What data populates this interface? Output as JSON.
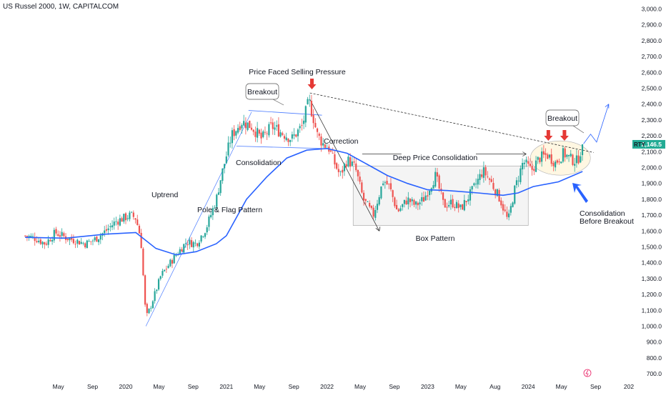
{
  "header": {
    "title": "US Russel 2000, 1W, CAPITALCOM"
  },
  "price_scale": {
    "ticker": "RTY",
    "last_price": "2,146.5"
  },
  "chart_data": {
    "type": "candlestick",
    "title": "US Russel 2000, 1W, CAPITALCOM",
    "ylim": [
      660,
      3020
    ],
    "yticks": [
      {
        "value": 3000,
        "label": "3,000.0"
      },
      {
        "value": 2900,
        "label": "2,900.0"
      },
      {
        "value": 2800,
        "label": "2,800.0"
      },
      {
        "value": 2700,
        "label": "2,700.0"
      },
      {
        "value": 2600,
        "label": "2,600.0"
      },
      {
        "value": 2500,
        "label": "2,500.0"
      },
      {
        "value": 2400,
        "label": "2,400.0"
      },
      {
        "value": 2300,
        "label": "2,300.0"
      },
      {
        "value": 2200,
        "label": "2,200.0"
      },
      {
        "value": 2100,
        "label": "2,100.0"
      },
      {
        "value": 2000,
        "label": "2,000.0"
      },
      {
        "value": 1900,
        "label": "1,900.0"
      },
      {
        "value": 1800,
        "label": "1,800.0"
      },
      {
        "value": 1700,
        "label": "1,700.0"
      },
      {
        "value": 1600,
        "label": "1,600.0"
      },
      {
        "value": 1500,
        "label": "1,500.0"
      },
      {
        "value": 1400,
        "label": "1,400.0"
      },
      {
        "value": 1300,
        "label": "1,300.0"
      },
      {
        "value": 1200,
        "label": "1,200.0"
      },
      {
        "value": 1100,
        "label": "1,100.0"
      },
      {
        "value": 1000,
        "label": "1,000.0"
      },
      {
        "value": 900,
        "label": "900.0"
      },
      {
        "value": 800,
        "label": "800.0"
      },
      {
        "value": 700,
        "label": "700.0"
      }
    ],
    "xticks": [
      {
        "t": 2019.33,
        "label": "May"
      },
      {
        "t": 2019.67,
        "label": "Sep"
      },
      {
        "t": 2020.0,
        "label": "2020"
      },
      {
        "t": 2020.33,
        "label": "May"
      },
      {
        "t": 2020.67,
        "label": "Sep"
      },
      {
        "t": 2021.0,
        "label": "2021"
      },
      {
        "t": 2021.33,
        "label": "May"
      },
      {
        "t": 2021.67,
        "label": "Sep"
      },
      {
        "t": 2022.0,
        "label": "2022"
      },
      {
        "t": 2022.33,
        "label": "May"
      },
      {
        "t": 2022.67,
        "label": "Sep"
      },
      {
        "t": 2023.0,
        "label": "2023"
      },
      {
        "t": 2023.33,
        "label": "May"
      },
      {
        "t": 2023.67,
        "label": "Aug"
      },
      {
        "t": 2024.0,
        "label": "2024"
      },
      {
        "t": 2024.33,
        "label": "May"
      },
      {
        "t": 2024.67,
        "label": "Sep"
      },
      {
        "t": 2025.0,
        "label": "202"
      }
    ],
    "path": [
      [
        2019.0,
        1570
      ],
      [
        2019.1,
        1555
      ],
      [
        2019.2,
        1520
      ],
      [
        2019.3,
        1590
      ],
      [
        2019.4,
        1560
      ],
      [
        2019.5,
        1540
      ],
      [
        2019.6,
        1520
      ],
      [
        2019.7,
        1550
      ],
      [
        2019.8,
        1600
      ],
      [
        2019.9,
        1660
      ],
      [
        2020.05,
        1700
      ],
      [
        2020.1,
        1680
      ],
      [
        2020.15,
        1550
      ],
      [
        2020.2,
        1050
      ],
      [
        2020.25,
        1130
      ],
      [
        2020.35,
        1320
      ],
      [
        2020.5,
        1450
      ],
      [
        2020.6,
        1530
      ],
      [
        2020.7,
        1520
      ],
      [
        2020.8,
        1620
      ],
      [
        2020.9,
        1800
      ],
      [
        2020.95,
        1950
      ],
      [
        2021.05,
        2200
      ],
      [
        2021.15,
        2290
      ],
      [
        2021.25,
        2260
      ],
      [
        2021.35,
        2180
      ],
      [
        2021.45,
        2260
      ],
      [
        2021.55,
        2220
      ],
      [
        2021.65,
        2180
      ],
      [
        2021.75,
        2260
      ],
      [
        2021.82,
        2420
      ],
      [
        2021.87,
        2300
      ],
      [
        2021.9,
        2210
      ],
      [
        2021.96,
        2150
      ],
      [
        2022.02,
        2120
      ],
      [
        2022.08,
        2020
      ],
      [
        2022.13,
        1950
      ],
      [
        2022.2,
        2050
      ],
      [
        2022.28,
        2000
      ],
      [
        2022.36,
        1800
      ],
      [
        2022.46,
        1700
      ],
      [
        2022.56,
        1920
      ],
      [
        2022.62,
        1880
      ],
      [
        2022.7,
        1720
      ],
      [
        2022.8,
        1800
      ],
      [
        2022.88,
        1760
      ],
      [
        2022.96,
        1800
      ],
      [
        2023.08,
        1950
      ],
      [
        2023.16,
        1760
      ],
      [
        2023.24,
        1780
      ],
      [
        2023.33,
        1740
      ],
      [
        2023.45,
        1860
      ],
      [
        2023.55,
        1980
      ],
      [
        2023.62,
        1920
      ],
      [
        2023.72,
        1800
      ],
      [
        2023.8,
        1660
      ],
      [
        2023.86,
        1850
      ],
      [
        2023.95,
        2040
      ],
      [
        2024.03,
        1980
      ],
      [
        2024.11,
        2060
      ],
      [
        2024.19,
        2080
      ],
      [
        2024.27,
        2030
      ],
      [
        2024.35,
        2090
      ],
      [
        2024.43,
        2050
      ],
      [
        2024.49,
        2040
      ],
      [
        2024.54,
        2146.5
      ]
    ],
    "sma": [
      [
        2019.0,
        1560
      ],
      [
        2019.4,
        1555
      ],
      [
        2019.8,
        1580
      ],
      [
        2020.1,
        1590
      ],
      [
        2020.3,
        1490
      ],
      [
        2020.5,
        1450
      ],
      [
        2020.7,
        1470
      ],
      [
        2020.9,
        1520
      ],
      [
        2021.0,
        1570
      ],
      [
        2021.2,
        1800
      ],
      [
        2021.4,
        1940
      ],
      [
        2021.6,
        2060
      ],
      [
        2021.8,
        2110
      ],
      [
        2022.0,
        2120
      ],
      [
        2022.2,
        2090
      ],
      [
        2022.4,
        2020
      ],
      [
        2022.6,
        1950
      ],
      [
        2022.8,
        1900
      ],
      [
        2023.0,
        1860
      ],
      [
        2023.2,
        1855
      ],
      [
        2023.5,
        1840
      ],
      [
        2023.75,
        1825
      ],
      [
        2023.9,
        1840
      ],
      [
        2024.05,
        1880
      ],
      [
        2024.3,
        1910
      ],
      [
        2024.54,
        1975
      ]
    ]
  },
  "annotations": {
    "selling_pressure": "Price Faced Selling Pressure",
    "breakout_left": "Breakout",
    "breakout_right": "Breakout",
    "correction": "Correction",
    "deep_consolidation": "Deep Price Consolidation",
    "consolidation": "Consolidation",
    "uptrend": "Uptrend",
    "pole_flag": "Pole & Flag Pattern",
    "box_pattern": "Box Pattern",
    "consolidation_before_1": "Consolidation",
    "consolidation_before_2": "Before Breakout"
  },
  "colors": {
    "bull": "#26a69a",
    "bear": "#ef5350",
    "ma": "#2962ff",
    "trend": "#4a7bff",
    "arrow_red": "#e53935",
    "badge": "#22ab94"
  }
}
